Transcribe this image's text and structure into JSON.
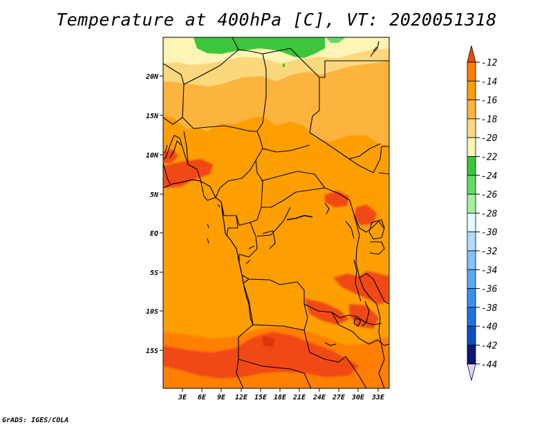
{
  "title": "Temperature at 400hPa [C], VT: 2020051318",
  "credit": "GrADS: IGES/COLA",
  "map": {
    "lat_labels": [
      "20N",
      "15N",
      "10N",
      "5N",
      "EQ",
      "5S",
      "10S",
      "15S"
    ],
    "lon_labels": [
      "3E",
      "6E",
      "9E",
      "12E",
      "15E",
      "18E",
      "21E",
      "24E",
      "27E",
      "30E",
      "33E"
    ]
  },
  "colorbar": {
    "levels": [
      "-12",
      "-14",
      "-16",
      "-18",
      "-20",
      "-22",
      "-24",
      "-26",
      "-28",
      "-30",
      "-32",
      "-34",
      "-36",
      "-38",
      "-40",
      "-42",
      "-44"
    ],
    "colors": [
      "#f04a12",
      "#ff7f00",
      "#fd9f00",
      "#fdb43f",
      "#fbd87d",
      "#fef4b5",
      "#3cc63c",
      "#63db63",
      "#a5eea1",
      "#e1ffff",
      "#b1dcff",
      "#82c2ff",
      "#5aa9f5",
      "#3891f0",
      "#1c74e3",
      "#0a50c4",
      "#0a1878",
      "#dcd6fb"
    ]
  }
}
